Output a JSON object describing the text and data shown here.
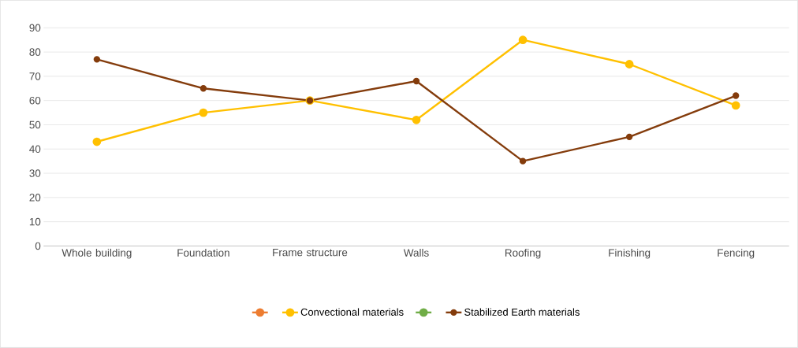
{
  "chart_data": {
    "type": "line",
    "categories": [
      "Whole building",
      "Foundation",
      "Frame structure",
      "Walls",
      "Roofing",
      "Finishing",
      "Fencing"
    ],
    "series": [
      {
        "color": "#ed7d31",
        "values": [
          null,
          null,
          null,
          null,
          null,
          null,
          null
        ]
      },
      {
        "name": "Convectional materials",
        "color": "#ffc000",
        "values": [
          43,
          55,
          60,
          52,
          85,
          75,
          58
        ]
      },
      {
        "color": "#70ad47",
        "values": [
          null,
          null,
          null,
          null,
          null,
          null,
          null
        ]
      },
      {
        "name": "Stabilized Earth materials",
        "color": "#843c0c",
        "values": [
          77,
          65,
          60,
          68,
          35,
          45,
          62
        ]
      }
    ],
    "ylim": [
      0,
      90
    ],
    "yticks": [
      0,
      10,
      20,
      30,
      40,
      50,
      60,
      70,
      80,
      90
    ],
    "grid": "y",
    "legend": "bottom",
    "marker": "circle",
    "line_style": "solid"
  }
}
